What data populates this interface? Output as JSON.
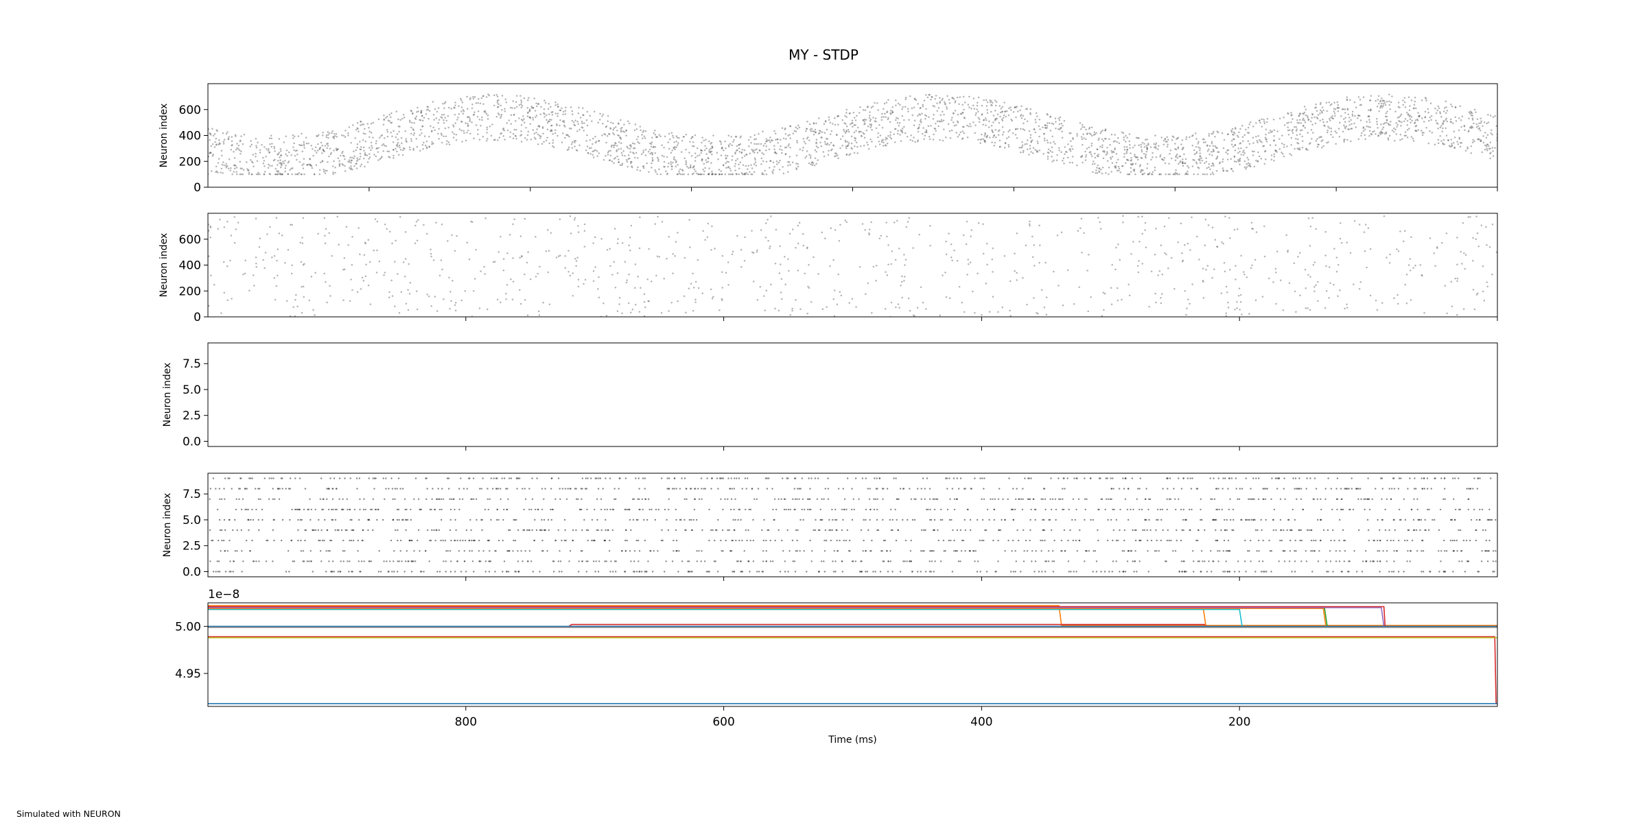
{
  "figure": {
    "title": "MY - STDP",
    "footer": "Simulated with NEURON"
  },
  "chart_data": [
    {
      "type": "scatter",
      "panel": 1,
      "description": "excitatory raster",
      "ylabel": "Neuron index",
      "xlim": [
        1000,
        0
      ],
      "ylim": [
        0,
        800
      ],
      "yticks": [
        0,
        200,
        400,
        600
      ],
      "ytick_labels": [
        "0",
        "200",
        "400",
        "600"
      ],
      "xticks": [
        875,
        750,
        625,
        500,
        375,
        250,
        125,
        0
      ],
      "xtick_labels": [],
      "marker_color": "#555555",
      "density": "high",
      "neuron_range": [
        100,
        720
      ]
    },
    {
      "type": "scatter",
      "panel": 2,
      "description": "inhibitory raster",
      "ylabel": "Neuron index",
      "xlim": [
        1000,
        0
      ],
      "ylim": [
        0,
        800
      ],
      "yticks": [
        0,
        200,
        400,
        600
      ],
      "ytick_labels": [
        "0",
        "200",
        "400",
        "600"
      ],
      "xticks": [
        800,
        600,
        400,
        200,
        0
      ],
      "xtick_labels": [],
      "marker_color": "#555555",
      "density": "low",
      "neuron_range": [
        0,
        780
      ]
    },
    {
      "type": "scatter",
      "panel": 3,
      "description": "empty raster",
      "ylabel": "Neuron index",
      "xlim": [
        1000,
        0
      ],
      "ylim": [
        -0.5,
        9.5
      ],
      "yticks": [
        0.0,
        2.5,
        5.0,
        7.5
      ],
      "ytick_labels": [
        "0.0",
        "2.5",
        "5.0",
        "7.5"
      ],
      "xticks": [
        800,
        600,
        400,
        200
      ],
      "xtick_labels": []
    },
    {
      "type": "scatter",
      "panel": 4,
      "description": "10-neuron raster",
      "ylabel": "Neuron index",
      "xlim": [
        1000,
        0
      ],
      "ylim": [
        -0.5,
        9.5
      ],
      "yticks": [
        0.0,
        2.5,
        5.0,
        7.5
      ],
      "ytick_labels": [
        "0.0",
        "2.5",
        "5.0",
        "7.5"
      ],
      "xticks": [
        800,
        600,
        400,
        200
      ],
      "xtick_labels": [],
      "rows": [
        0,
        1,
        2,
        3,
        4,
        5,
        6,
        7,
        8,
        9
      ],
      "marker_color": "#333333"
    },
    {
      "type": "line",
      "panel": 5,
      "description": "synaptic weights",
      "xlabel": "Time (ms)",
      "offset_label": "1e−8",
      "xlim": [
        1000,
        0
      ],
      "ylim": [
        4.915,
        5.025
      ],
      "yticks": [
        4.95,
        5.0
      ],
      "ytick_labels": [
        "4.95",
        "5.00"
      ],
      "xticks": [
        800,
        600,
        400,
        200
      ],
      "xtick_labels": [
        "800",
        "600",
        "400",
        "200"
      ],
      "series": [
        {
          "color": "#ff7f0e",
          "points": [
            [
              1000,
              5.022
            ],
            [
              340,
              5.022
            ],
            [
              338,
              5.001
            ],
            [
              0,
              5.001
            ]
          ]
        },
        {
          "color": "#d62728",
          "points": [
            [
              1000,
              5.0
            ],
            [
              720,
              5.0
            ],
            [
              718,
              5.002
            ],
            [
              227,
              5.002
            ],
            [
              225,
              5.0
            ],
            [
              0,
              5.0
            ]
          ]
        },
        {
          "color": "#17becf",
          "points": [
            [
              1000,
              5.0
            ],
            [
              200,
              5.0
            ],
            [
              198,
              5.0
            ],
            [
              0,
              5.0
            ]
          ]
        },
        {
          "color": "#ff7f0e",
          "points": [
            [
              1000,
              5.018
            ],
            [
              228,
              5.018
            ],
            [
              226,
              5.0
            ],
            [
              0,
              5.0
            ]
          ]
        },
        {
          "color": "#17becf",
          "points": [
            [
              1000,
              5.018
            ],
            [
              200,
              5.018
            ],
            [
              198,
              5.0
            ],
            [
              0,
              5.0
            ]
          ]
        },
        {
          "color": "#2ca02c",
          "points": [
            [
              1000,
              5.019
            ],
            [
              134,
              5.019
            ],
            [
              132,
              5.0
            ],
            [
              0,
              5.0
            ]
          ]
        },
        {
          "color": "#ff7f0e",
          "points": [
            [
              1000,
              5.019
            ],
            [
              135,
              5.019
            ],
            [
              133,
              5.0
            ],
            [
              0,
              5.0
            ]
          ]
        },
        {
          "color": "#9467bd",
          "points": [
            [
              1000,
              5.02
            ],
            [
              90,
              5.02
            ],
            [
              88,
              5.0
            ],
            [
              0,
              5.0
            ]
          ]
        },
        {
          "color": "#d62728",
          "points": [
            [
              1000,
              5.021
            ],
            [
              88,
              5.021
            ],
            [
              87,
              4.999
            ],
            [
              0,
              4.999
            ]
          ]
        },
        {
          "color": "#1f77b4",
          "points": [
            [
              1000,
              5.0
            ],
            [
              0,
              5.0
            ]
          ]
        },
        {
          "color": "#7f7f7f",
          "points": [
            [
              1000,
              4.999
            ],
            [
              0,
              4.999
            ]
          ]
        },
        {
          "color": "#d62728",
          "points": [
            [
              1000,
              4.989
            ],
            [
              2,
              4.989
            ],
            [
              1,
              4.918
            ],
            [
              0,
              4.918
            ]
          ]
        },
        {
          "color": "#bcbd22",
          "points": [
            [
              1000,
              4.988
            ],
            [
              0,
              4.988
            ]
          ]
        },
        {
          "color": "#1f77b4",
          "points": [
            [
              1000,
              4.918
            ],
            [
              0,
              4.918
            ]
          ]
        }
      ]
    }
  ]
}
